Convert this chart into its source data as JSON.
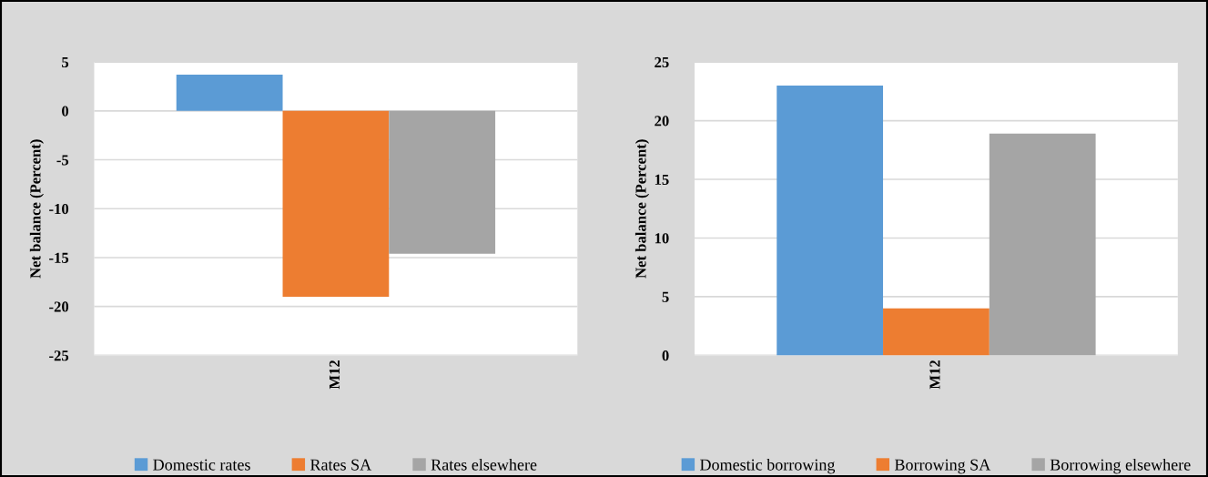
{
  "chart_data": [
    {
      "type": "bar",
      "categories": [
        "M12"
      ],
      "ylabel": "Net balance (Percent)",
      "ylim": [
        -25,
        5
      ],
      "yticks": [
        -25,
        -20,
        -15,
        -10,
        -5,
        0,
        5
      ],
      "grid": "y",
      "legend": "bottom",
      "series": [
        {
          "name": "Domestic rates",
          "color": "#5b9bd5",
          "values": [
            3.7
          ]
        },
        {
          "name": "Rates SA",
          "color": "#ed7d31",
          "values": [
            -19.0
          ]
        },
        {
          "name": "Rates elsewhere",
          "color": "#a5a5a5",
          "values": [
            -14.6
          ]
        }
      ]
    },
    {
      "type": "bar",
      "categories": [
        "M12"
      ],
      "ylabel": "Net balance (Percent)",
      "ylim": [
        0,
        25
      ],
      "yticks": [
        0,
        5,
        10,
        15,
        20,
        25
      ],
      "grid": "y",
      "legend": "bottom",
      "series": [
        {
          "name": "Domestic borrowing",
          "color": "#5b9bd5",
          "values": [
            23.0
          ]
        },
        {
          "name": "Borrowing SA",
          "color": "#ed7d31",
          "values": [
            4.0
          ]
        },
        {
          "name": "Borrowing elsewhere",
          "color": "#a5a5a5",
          "values": [
            18.9
          ]
        }
      ]
    }
  ]
}
